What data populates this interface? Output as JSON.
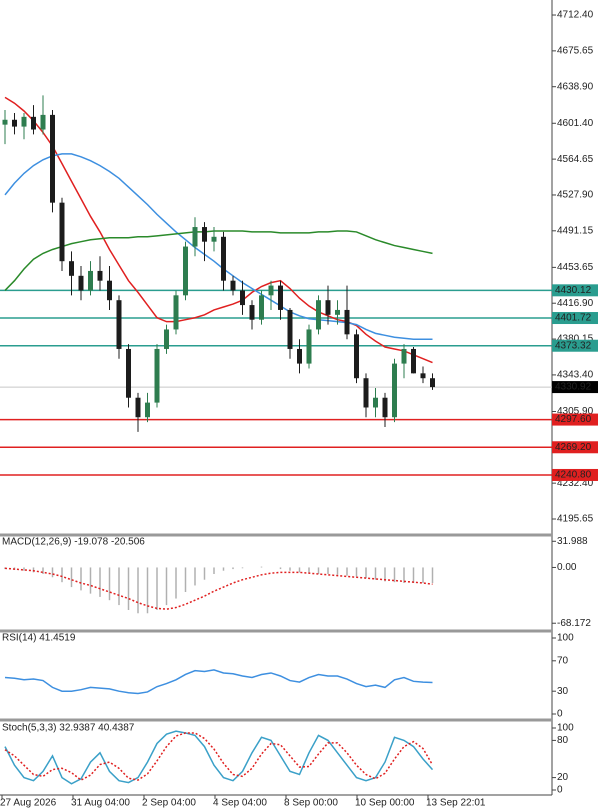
{
  "chart_data": {
    "type": "candlestick",
    "ohlc": [
      [
        4600,
        4615,
        4580,
        4605
      ],
      [
        4605,
        4612,
        4590,
        4598
      ],
      [
        4598,
        4612,
        4585,
        4608
      ],
      [
        4608,
        4620,
        4590,
        4595
      ],
      [
        4595,
        4630,
        4590,
        4610
      ],
      [
        4610,
        4615,
        4510,
        4520
      ],
      [
        4520,
        4525,
        4450,
        4460
      ],
      [
        4460,
        4470,
        4425,
        4445
      ],
      [
        4445,
        4455,
        4420,
        4430
      ],
      [
        4430,
        4460,
        4425,
        4450
      ],
      [
        4450,
        4465,
        4430,
        4440
      ],
      [
        4440,
        4455,
        4410,
        4420
      ],
      [
        4420,
        4425,
        4360,
        4370
      ],
      [
        4370,
        4375,
        4310,
        4320
      ],
      [
        4320,
        4325,
        4285,
        4300
      ],
      [
        4300,
        4325,
        4295,
        4315
      ],
      [
        4315,
        4375,
        4310,
        4370
      ],
      [
        4370,
        4395,
        4365,
        4390
      ],
      [
        4390,
        4430,
        4385,
        4425
      ],
      [
        4425,
        4480,
        4420,
        4475
      ],
      [
        4475,
        4505,
        4465,
        4495
      ],
      [
        4495,
        4500,
        4460,
        4480
      ],
      [
        4480,
        4495,
        4470,
        4485
      ],
      [
        4485,
        4490,
        4430,
        4440
      ],
      [
        4440,
        4445,
        4425,
        4430
      ],
      [
        4430,
        4440,
        4405,
        4415
      ],
      [
        4415,
        4420,
        4390,
        4400
      ],
      [
        4400,
        4430,
        4395,
        4425
      ],
      [
        4425,
        4440,
        4410,
        4435
      ],
      [
        4435,
        4440,
        4400,
        4410
      ],
      [
        4410,
        4412,
        4360,
        4370
      ],
      [
        4370,
        4380,
        4345,
        4355
      ],
      [
        4355,
        4395,
        4350,
        4390
      ],
      [
        4390,
        4425,
        4385,
        4420
      ],
      [
        4420,
        4435,
        4395,
        4405
      ],
      [
        4405,
        4420,
        4395,
        4410
      ],
      [
        4410,
        4435,
        4380,
        4385
      ],
      [
        4385,
        4390,
        4335,
        4340
      ],
      [
        4340,
        4345,
        4300,
        4310
      ],
      [
        4310,
        4330,
        4300,
        4320
      ],
      [
        4320,
        4325,
        4290,
        4300
      ],
      [
        4300,
        4360,
        4295,
        4355
      ],
      [
        4355,
        4375,
        4340,
        4370
      ],
      [
        4370,
        4372,
        4345,
        4345
      ],
      [
        4345,
        4352,
        4335,
        4340
      ],
      [
        4340,
        4345,
        4328,
        4330.92
      ]
    ],
    "up_color": "#2e7d4f",
    "down_color": "#1c1c1c",
    "series": [
      {
        "color": "#e02020",
        "values": [
          4628,
          4622,
          4614,
          4604,
          4592,
          4578,
          4560,
          4542,
          4524,
          4506,
          4490,
          4472,
          4456,
          4440,
          4428,
          4415,
          4402,
          4398,
          4398,
          4400,
          4402,
          4405,
          4410,
          4413,
          4416,
          4420,
          4428,
          4434,
          4438,
          4440,
          4432,
          4422,
          4414,
          4408,
          4404,
          4400,
          4398,
          4394,
          4385,
          4378,
          4372,
          4370,
          4368,
          4364,
          4360,
          4356
        ]
      },
      {
        "color": "#3d8fe0",
        "values": [
          4528,
          4540,
          4550,
          4558,
          4564,
          4568,
          4570,
          4570,
          4567,
          4563,
          4558,
          4552,
          4545,
          4536,
          4527,
          4518,
          4508,
          4499,
          4490,
          4482,
          4474,
          4467,
          4460,
          4452,
          4445,
          4438,
          4432,
          4426,
          4420,
          4414,
          4408,
          4404,
          4401,
          4400,
          4399,
          4398,
          4397,
          4395,
          4390,
          4386,
          4384,
          4382,
          4381,
          4380,
          4380,
          4380
        ]
      },
      {
        "color": "#2a8a2a",
        "values": [
          4430,
          4440,
          4452,
          4462,
          4468,
          4472,
          4475,
          4478,
          4480,
          4482,
          4483,
          4484,
          4484,
          4484,
          4485,
          4485,
          4486,
          4487,
          4488,
          4489,
          4490,
          4490,
          4491,
          4491,
          4491,
          4491,
          4490,
          4490,
          4490,
          4489,
          4489,
          4489,
          4489,
          4490,
          4490,
          4491,
          4491,
          4490,
          4486,
          4482,
          4479,
          4476,
          4474,
          4472,
          4470,
          4468
        ]
      }
    ],
    "ylim": [
      4181.3,
      4727.8
    ],
    "yticks": [
      {
        "value": 4712.4,
        "label": "4712.40"
      },
      4675.65,
      {
        "value": 4638.9,
        "label": "4638.90"
      },
      {
        "value": 4601.4,
        "label": "4601.40"
      },
      4564.65,
      {
        "value": 4527.9,
        "label": "4527.90"
      },
      4491.15,
      4453.65,
      {
        "value": 4416.9,
        "label": "4416.90"
      },
      4380.15,
      {
        "value": 4343.4,
        "label": "4343.40"
      },
      {
        "value": 4305.9,
        "label": "4305.90"
      },
      {
        "value": 4232.4,
        "label": "4232.40"
      },
      4195.65
    ],
    "levels": [
      {
        "value": 4430.12,
        "color": "#2a9d8f"
      },
      {
        "value": 4401.72,
        "color": "#2a9d8f"
      },
      {
        "value": 4373.32,
        "color": "#2a9d8f"
      },
      {
        "value": 4330.92,
        "color": "#000000"
      },
      {
        "value": 4297.6,
        "label": "4297.60",
        "color": "#e02020"
      },
      {
        "value": 4269.2,
        "label": "4269.20",
        "color": "#e02020"
      },
      {
        "value": 4240.8,
        "label": "4240.80",
        "color": "#e02020"
      }
    ],
    "x_labels": [
      "27 Aug 2026",
      "31 Aug 04:00",
      "2 Sep 04:00",
      "4 Sep 04:00",
      "8 Sep 00:00",
      "10 Sep 00:00",
      "13 Sep 22:01"
    ],
    "indicators": [
      {
        "type": "macd",
        "label": "MACD(12,26,9) -19.078 -20.506",
        "ylim": [
          -74,
          36
        ],
        "yticks": [
          31.988,
          {
            "value": 0,
            "label": "0.00"
          },
          -68.172
        ],
        "histogram": [
          -2,
          -3,
          -4,
          -6,
          -8,
          -12,
          -18,
          -24,
          -28,
          -32,
          -36,
          -40,
          -46,
          -52,
          -56,
          -56,
          -52,
          -46,
          -38,
          -30,
          -22,
          -15,
          -8,
          -4,
          -2,
          -1,
          0,
          1,
          0,
          -2,
          -4,
          -6,
          -7,
          -8,
          -8,
          -9,
          -10,
          -11,
          -13,
          -15,
          -17,
          -18,
          -19,
          -19,
          -19,
          -19.078
        ],
        "signal": [
          -1,
          -2,
          -3,
          -4,
          -6,
          -8,
          -11,
          -15,
          -19,
          -22,
          -26,
          -30,
          -34,
          -38,
          -43,
          -47,
          -50,
          -51,
          -49,
          -45,
          -40,
          -35,
          -29,
          -24,
          -19,
          -15,
          -12,
          -9,
          -7,
          -6,
          -6,
          -6,
          -7,
          -8,
          -9,
          -10,
          -11,
          -12,
          -13,
          -14,
          -15,
          -16,
          -17,
          -18,
          -19,
          -20.506
        ],
        "hist_color": "#b0b0b0",
        "signal_color": "#e02020"
      },
      {
        "type": "rsi",
        "label": "RSI(14) 41.4519",
        "ylim": [
          0,
          100
        ],
        "yticks": [
          100,
          70,
          30,
          0
        ],
        "color": "#3d8fe0",
        "values": [
          48,
          47,
          45,
          46,
          44,
          35,
          30,
          30,
          32,
          35,
          34,
          33,
          30,
          28,
          27,
          29,
          36,
          40,
          45,
          52,
          57,
          56,
          58,
          54,
          53,
          50,
          48,
          52,
          54,
          50,
          44,
          42,
          48,
          52,
          50,
          50,
          46,
          40,
          36,
          38,
          35,
          45,
          48,
          43,
          42,
          41.4519
        ]
      },
      {
        "type": "stoch",
        "label": "Stoch(5,3,3) 32.9387 40.4387",
        "ylim": [
          0,
          100
        ],
        "yticks": [
          100,
          80,
          20,
          0
        ],
        "main": [
          70,
          40,
          20,
          15,
          30,
          55,
          20,
          10,
          18,
          45,
          60,
          30,
          15,
          12,
          20,
          45,
          75,
          90,
          95,
          92,
          88,
          70,
          40,
          20,
          15,
          30,
          60,
          85,
          80,
          55,
          30,
          25,
          60,
          88,
          80,
          60,
          40,
          20,
          15,
          20,
          45,
          85,
          80,
          70,
          50,
          32.9387
        ],
        "signal": [
          65,
          55,
          40,
          25,
          22,
          33,
          35,
          28,
          16,
          24,
          41,
          45,
          35,
          19,
          16,
          26,
          47,
          70,
          87,
          92,
          92,
          83,
          66,
          43,
          25,
          22,
          35,
          58,
          75,
          73,
          55,
          37,
          38,
          58,
          76,
          76,
          60,
          40,
          25,
          18,
          27,
          50,
          70,
          78,
          67,
          40.4387
        ],
        "main_color": "#3aa0c8",
        "signal_color": "#e02020"
      }
    ]
  }
}
